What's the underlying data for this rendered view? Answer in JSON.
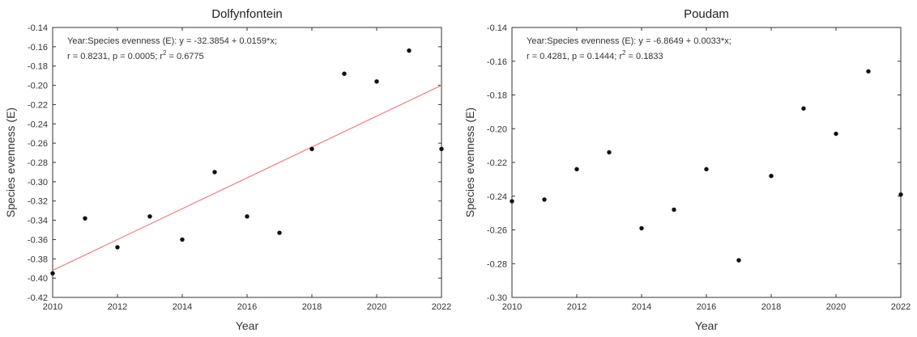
{
  "chart_data": [
    {
      "type": "scatter",
      "title": "Dolfynfontein",
      "xlabel": "Year",
      "ylabel": "Species evenness (E)",
      "xlim": [
        2010,
        2022
      ],
      "ylim": [
        -0.42,
        -0.14
      ],
      "xticks": [
        2010,
        2012,
        2014,
        2016,
        2018,
        2020,
        2022
      ],
      "xtick_labels": [
        "2010",
        "2012",
        "2014",
        "2016",
        "2018",
        "2020",
        "2022"
      ],
      "yticks": [
        -0.14,
        -0.16,
        -0.18,
        -0.2,
        -0.22,
        -0.24,
        -0.26,
        -0.28,
        -0.3,
        -0.32,
        -0.34,
        -0.36,
        -0.38,
        -0.4,
        -0.42
      ],
      "ytick_labels": [
        "-0.14",
        "-0.16",
        "-0.18",
        "-0.20",
        "-0.22",
        "-0.24",
        "-0.26",
        "-0.28",
        "-0.30",
        "-0.32",
        "-0.34",
        "-0.36",
        "-0.38",
        "-0.40",
        "-0.42"
      ],
      "grid": false,
      "annotation_line1": "Year:Species evenness (E):   y = -32.3854 + 0.0159*x;",
      "annotation_line2_prefix": "r = 0.8231, p = 0.0005; r",
      "annotation_line2_sup": "2",
      "annotation_line2_suffix": " = 0.6775",
      "regression": {
        "intercept": -32.3854,
        "slope": 0.0159,
        "color": "#f08080",
        "line_y_start": -0.392,
        "line_y_end": -0.2
      },
      "point_color": "#111111",
      "points": [
        {
          "x": 2010,
          "y": -0.395
        },
        {
          "x": 2011,
          "y": -0.338
        },
        {
          "x": 2012,
          "y": -0.368
        },
        {
          "x": 2013,
          "y": -0.336
        },
        {
          "x": 2014,
          "y": -0.36
        },
        {
          "x": 2015,
          "y": -0.29
        },
        {
          "x": 2016,
          "y": -0.336
        },
        {
          "x": 2017,
          "y": -0.353
        },
        {
          "x": 2018,
          "y": -0.266
        },
        {
          "x": 2019,
          "y": -0.188
        },
        {
          "x": 2020,
          "y": -0.196
        },
        {
          "x": 2021,
          "y": -0.164
        },
        {
          "x": 2022,
          "y": -0.266
        }
      ]
    },
    {
      "type": "scatter",
      "title": "Poudam",
      "xlabel": "Year",
      "ylabel": "Species evenness (E)",
      "xlim": [
        2010,
        2022
      ],
      "ylim": [
        -0.3,
        -0.14
      ],
      "xticks": [
        2010,
        2012,
        2014,
        2016,
        2018,
        2020,
        2022
      ],
      "xtick_labels": [
        "2010",
        "2012",
        "2014",
        "2016",
        "2018",
        "2020",
        "2022"
      ],
      "yticks": [
        -0.14,
        -0.16,
        -0.18,
        -0.2,
        -0.22,
        -0.24,
        -0.26,
        -0.28,
        -0.3
      ],
      "ytick_labels": [
        "-0.14",
        "-0.16",
        "-0.18",
        "-0.20",
        "-0.22",
        "-0.24",
        "-0.26",
        "-0.28",
        "-0.30"
      ],
      "grid": false,
      "annotation_line1": "Year:Species evenness (E):   y = -6.8649 + 0.0033*x;",
      "annotation_line2_prefix": "r = 0.4281, p = 0.1444; r",
      "annotation_line2_sup": "2",
      "annotation_line2_suffix": " = 0.1833",
      "point_color": "#111111",
      "points": [
        {
          "x": 2010,
          "y": -0.243
        },
        {
          "x": 2011,
          "y": -0.242
        },
        {
          "x": 2012,
          "y": -0.224
        },
        {
          "x": 2013,
          "y": -0.214
        },
        {
          "x": 2014,
          "y": -0.259
        },
        {
          "x": 2015,
          "y": -0.248
        },
        {
          "x": 2016,
          "y": -0.224
        },
        {
          "x": 2017,
          "y": -0.278
        },
        {
          "x": 2018,
          "y": -0.228
        },
        {
          "x": 2019,
          "y": -0.188
        },
        {
          "x": 2020,
          "y": -0.203
        },
        {
          "x": 2021,
          "y": -0.166
        },
        {
          "x": 2022,
          "y": -0.239
        }
      ]
    }
  ]
}
